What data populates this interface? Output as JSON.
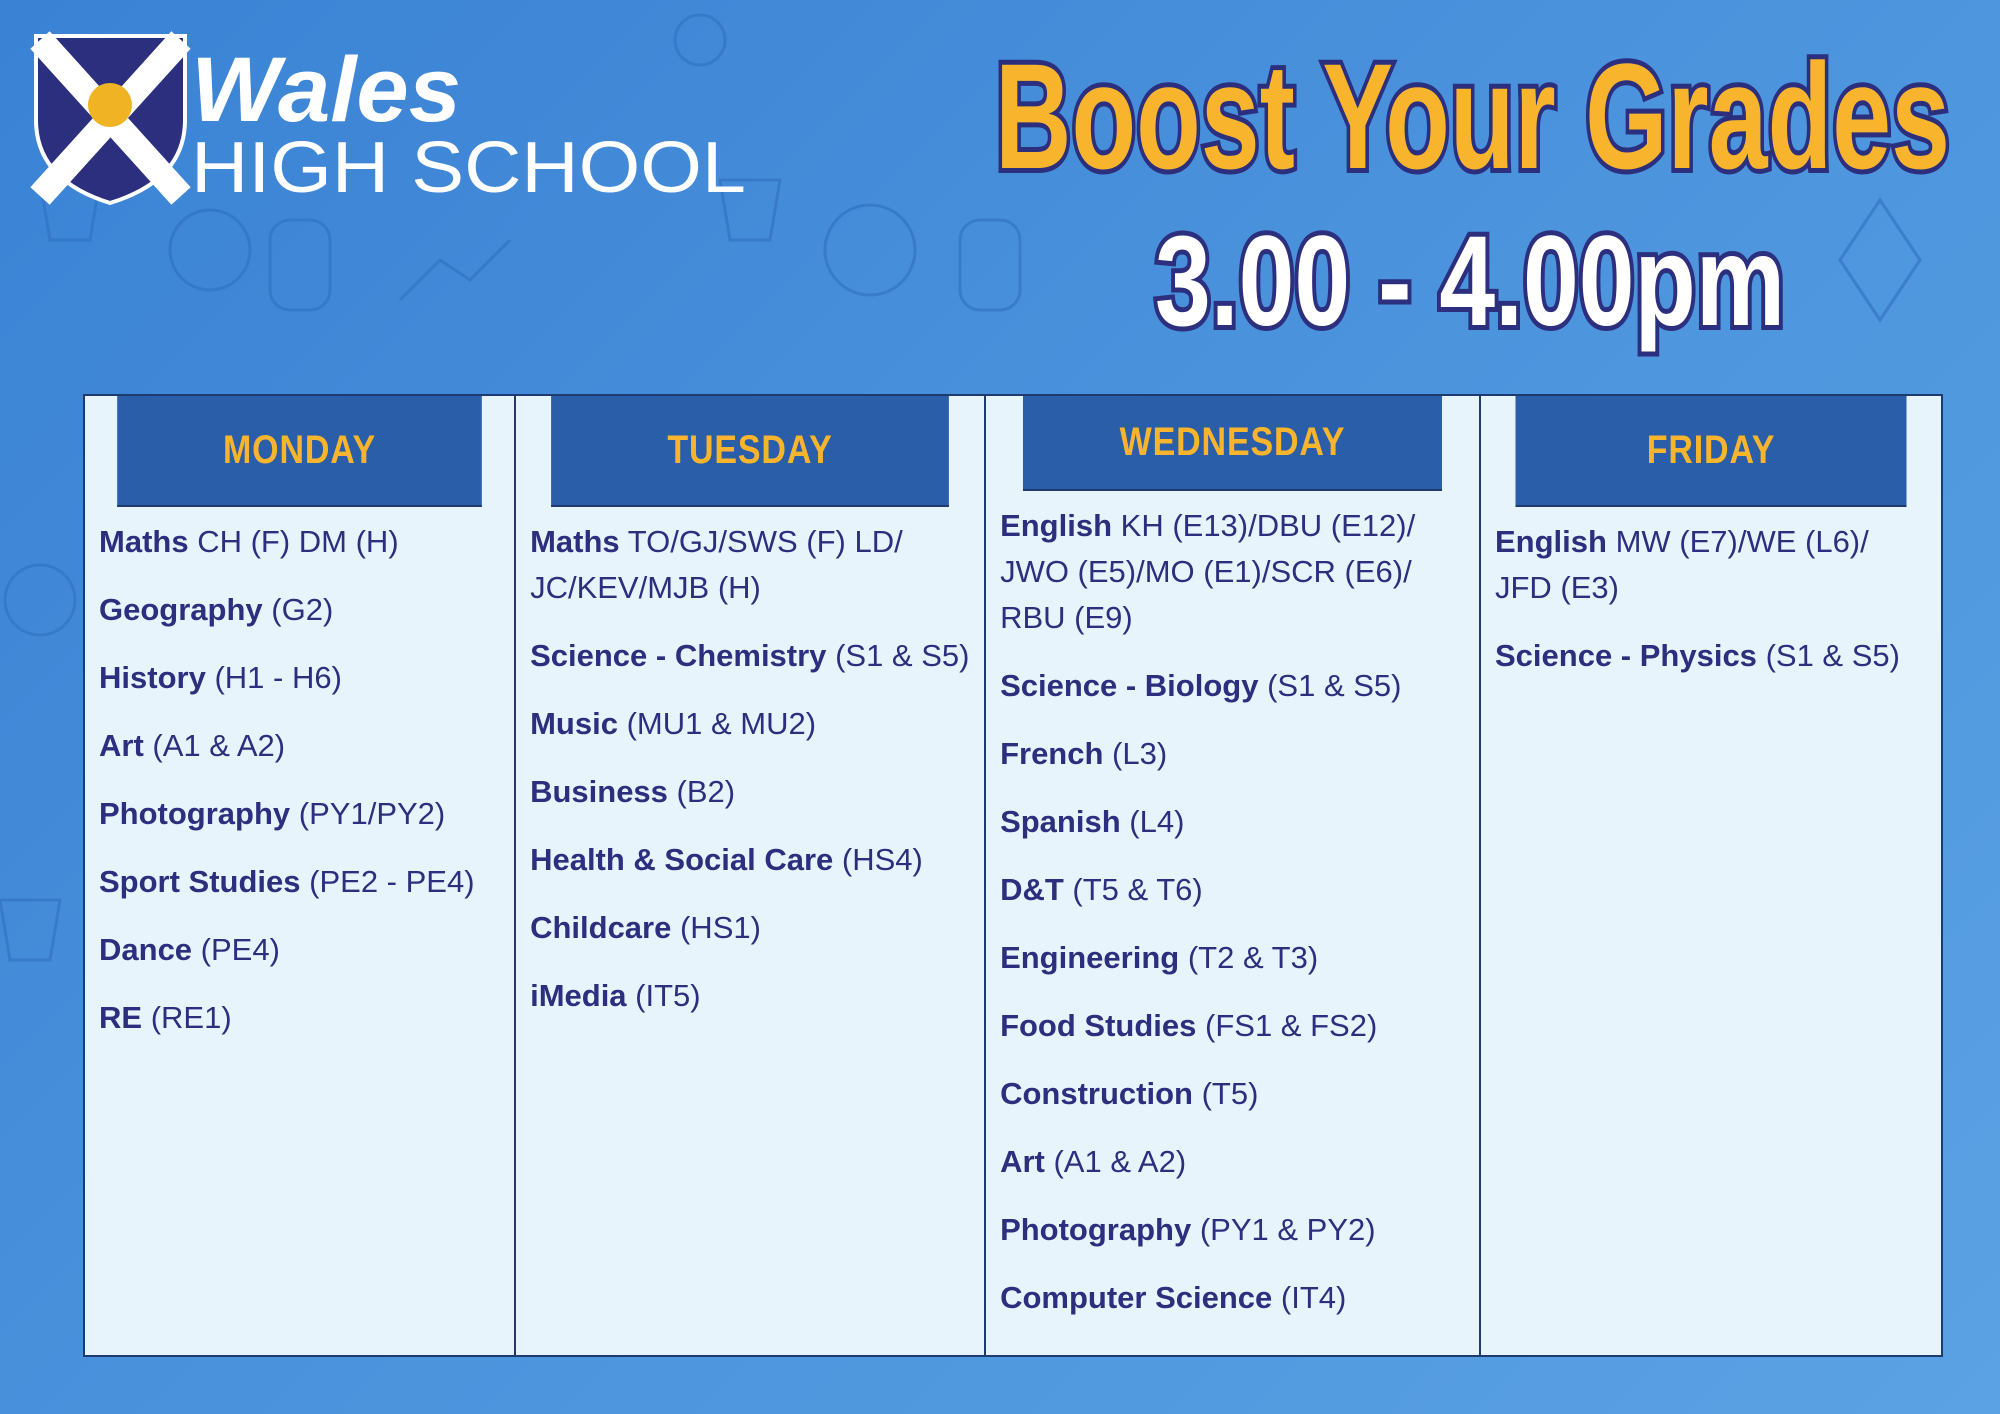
{
  "header": {
    "logo_name": "Wales",
    "logo_subtitle": "HIGH SCHOOL",
    "title": "Boost Your Grades",
    "time": "3.00 - 4.00pm"
  },
  "table": {
    "columns": [
      {
        "day": "MONDAY",
        "items": [
          {
            "subject": "Maths",
            "detail": "CH (F) DM (H)"
          },
          {
            "subject": "Geography",
            "detail": "(G2)"
          },
          {
            "subject": "History",
            "detail": "(H1 - H6)"
          },
          {
            "subject": "Art",
            "detail": "(A1 & A2)"
          },
          {
            "subject": "Photography",
            "detail": "(PY1/PY2)"
          },
          {
            "subject": "Sport Studies",
            "detail": "(PE2 - PE4)"
          },
          {
            "subject": "Dance",
            "detail": "(PE4)"
          },
          {
            "subject": "RE",
            "detail": "(RE1)"
          }
        ]
      },
      {
        "day": "TUESDAY",
        "items": [
          {
            "subject": "Maths",
            "detail": "TO/GJ/SWS (F) LD/ JC/KEV/MJB (H)"
          },
          {
            "subject": "Science - Chemistry",
            "detail": "(S1 & S5)"
          },
          {
            "subject": "Music",
            "detail": "(MU1 & MU2)"
          },
          {
            "subject": "Business",
            "detail": "(B2)"
          },
          {
            "subject": "Health & Social Care",
            "detail": "(HS4)"
          },
          {
            "subject": "Childcare",
            "detail": "(HS1)"
          },
          {
            "subject": "iMedia",
            "detail": "(IT5)"
          }
        ]
      },
      {
        "day": "WEDNESDAY",
        "items": [
          {
            "subject": "English",
            "detail": "KH (E13)/DBU (E12)/ JWO (E5)/MO (E1)/SCR (E6)/ RBU (E9)"
          },
          {
            "subject": "Science - Biology",
            "detail": "(S1 & S5)"
          },
          {
            "subject": "French",
            "detail": "(L3)"
          },
          {
            "subject": "Spanish",
            "detail": "(L4)"
          },
          {
            "subject": "D&T",
            "detail": "(T5 & T6)"
          },
          {
            "subject": "Engineering",
            "detail": "(T2 & T3)"
          },
          {
            "subject": "Food Studies",
            "detail": "(FS1 & FS2)"
          },
          {
            "subject": "Construction",
            "detail": "(T5)"
          },
          {
            "subject": "Art",
            "detail": "(A1 & A2)"
          },
          {
            "subject": "Photography",
            "detail": "(PY1 & PY2)"
          },
          {
            "subject": "Computer Science",
            "detail": "(IT4)"
          }
        ]
      },
      {
        "day": "FRIDAY",
        "items": [
          {
            "subject": "English",
            "detail": "MW (E7)/WE (L6)/ JFD (E3)"
          },
          {
            "subject": "Science - Physics",
            "detail": "(S1 & S5)"
          }
        ]
      }
    ]
  }
}
